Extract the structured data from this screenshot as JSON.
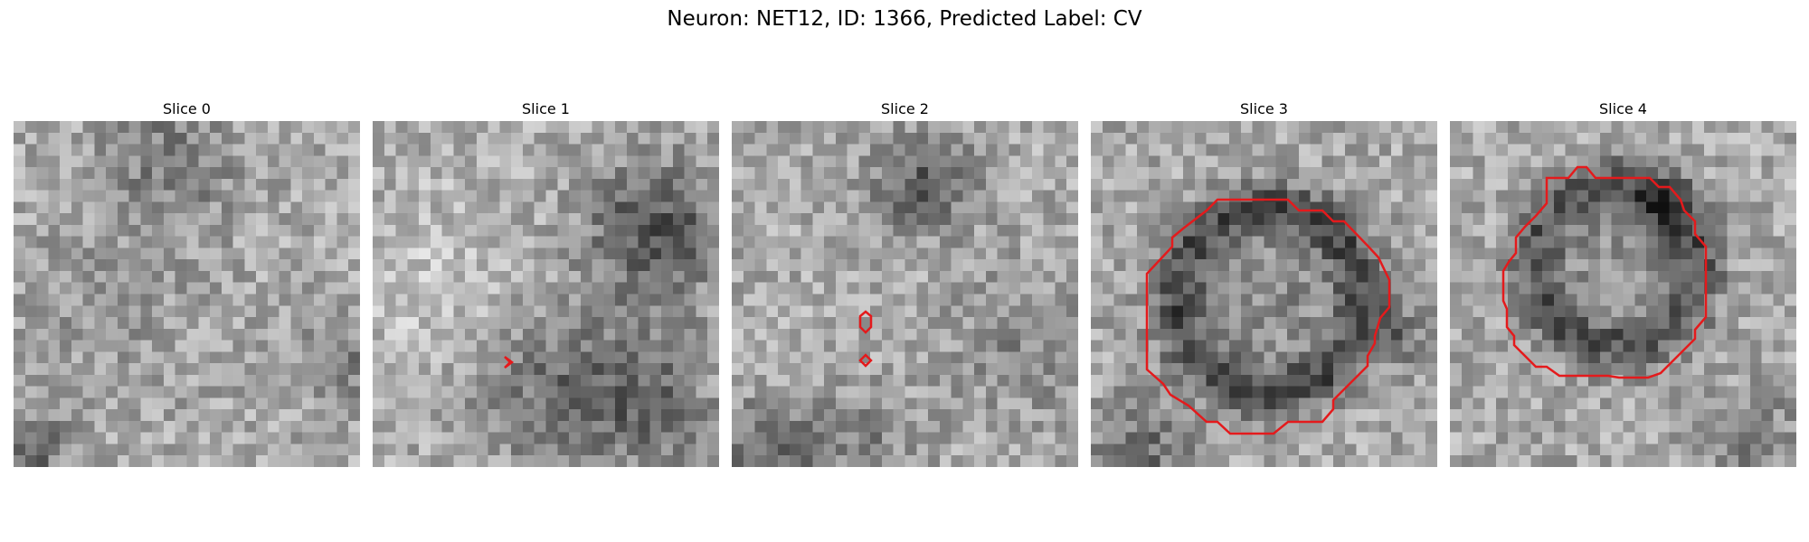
{
  "figure": {
    "title": "Neuron: NET12, ID: 1366, Predicted Label: CV",
    "contour_color": "#e41a1c"
  },
  "slices": [
    {
      "title": "Slice 0"
    },
    {
      "title": "Slice 1"
    },
    {
      "title": "Slice 2"
    },
    {
      "title": "Slice 3"
    },
    {
      "title": "Slice 4"
    }
  ]
}
